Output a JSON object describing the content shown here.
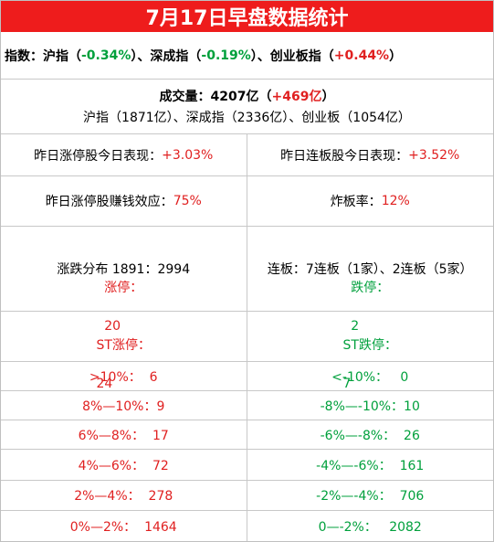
{
  "title": "7月17日早盘数据统计",
  "indices": {
    "prefix": "指数：沪指（",
    "sh_value": "-0.34%",
    "sep1": "）、深成指（",
    "sz_value": "-0.19%",
    "sep2": "）、创业板指（",
    "cy_value": "+0.44%",
    "suffix": "）"
  },
  "volume": {
    "label": "成交量：4207亿（",
    "change": "+469亿",
    "close": "）",
    "detail": "沪指（1871亿）、深成指（2336亿）、创业板（1054亿）"
  },
  "perf": {
    "left_label": "昨日涨停股今日表现：",
    "left_value": "+3.03%",
    "right_label": "昨日连板股今日表现：",
    "right_value": "+3.52%"
  },
  "effect": {
    "left_label": "昨日涨停股赚钱效应：",
    "left_value": "75%",
    "right_label": "炸板率：",
    "right_value": "12%"
  },
  "distribution": {
    "left": "涨跌分布 1891：2994",
    "right": "连板：7连板（1家）、2连板（5家）"
  },
  "limits": {
    "up_label": "涨停：",
    "up_value": "20",
    "st_up_label": "ST涨停：",
    "st_up_value": "24",
    "down_label": "跌停：",
    "down_value": "2",
    "st_down_label": "ST跌停：",
    "st_down_value": "7"
  },
  "ranges": [
    {
      "left": ">10%：  6",
      "right": "<-10%：   0"
    },
    {
      "left": "8%—10%：9",
      "right": "-8%—-10%：10"
    },
    {
      "left": "6%—8%：  17",
      "right": "-6%—-8%：  26"
    },
    {
      "left": "4%—6%：  72",
      "right": "-4%—-6%：  161"
    },
    {
      "left": "2%—4%：  278",
      "right": "-2%—-4%：  706"
    },
    {
      "left": "0%—2%：  1464",
      "right": "0—-2%：   2082"
    }
  ],
  "colors": {
    "title_bg": "#ee1c1c",
    "up": "#e02020",
    "down": "#00a03c"
  }
}
